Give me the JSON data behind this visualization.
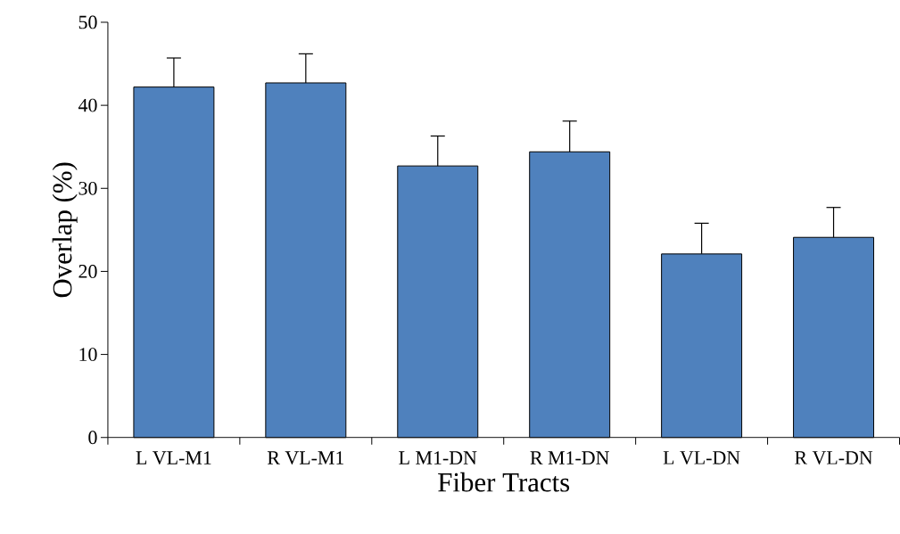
{
  "chart_data": {
    "type": "bar",
    "xlabel": "Fiber Tracts",
    "ylabel": "Overlap (%)",
    "categories": [
      "L VL-M1",
      "R VL-M1",
      "L M1-DN",
      "R M1-DN",
      "L VL-DN",
      "R VL-DN"
    ],
    "values": [
      42.2,
      42.7,
      32.7,
      34.4,
      22.1,
      24.1
    ],
    "errors": [
      3.5,
      3.5,
      3.6,
      3.7,
      3.7,
      3.6
    ],
    "color": "#4f81bd",
    "ylim": [
      0,
      50
    ],
    "yticks": [
      0,
      10,
      20,
      30,
      40,
      50
    ],
    "grid": false
  }
}
